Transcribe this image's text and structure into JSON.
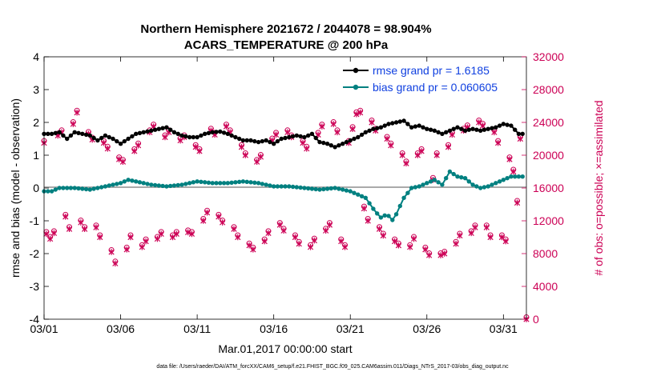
{
  "chart_data": {
    "type": "line",
    "title_line1": "Northern Hemisphere 2021672 / 2044078 = 98.904%",
    "title_line2": "ACARS_TEMPERATURE @ 200 hPa",
    "xlabel": "Mar.01,2017 00:00:00 start",
    "ylabel": "rmse and bias (model - observation)",
    "y2label": "# of obs: o=possible; ×=assimilated",
    "ylim": [
      -4,
      4
    ],
    "y2lim": [
      0,
      32000
    ],
    "xlim": [
      1,
      32.5
    ],
    "x_tick_values": [
      1,
      6,
      11,
      16,
      21,
      26,
      31
    ],
    "x_tick_labels": [
      "03/01",
      "03/06",
      "03/11",
      "03/16",
      "03/21",
      "03/26",
      "03/31"
    ],
    "y_tick_labels": [
      "4",
      "3",
      "2",
      "1",
      "0",
      "-1",
      "-2",
      "-3",
      "-4"
    ],
    "y2_tick_labels": [
      "32000",
      "28000",
      "24000",
      "20000",
      "16000",
      "12000",
      "8000",
      "4000",
      "0"
    ],
    "footnote": "data file: /Users/raeder/DAI/ATM_forcXX/CAM6_setup/f.e21.FHIST_BGC.f09_025.CAM6assim.011/Diags_NTrS_2017-03/obs_diag_output.nc",
    "series": [
      {
        "name": "rmse grand pr = 1.6185",
        "color": "#000000",
        "rmse_waypoints": [
          [
            1.0,
            1.65
          ],
          [
            1.5,
            1.65
          ],
          [
            2.0,
            1.7
          ],
          [
            2.5,
            1.5
          ],
          [
            3.0,
            1.7
          ],
          [
            3.5,
            1.65
          ],
          [
            4.0,
            1.6
          ],
          [
            4.5,
            1.45
          ],
          [
            5.0,
            1.6
          ],
          [
            5.5,
            1.5
          ],
          [
            6.0,
            1.35
          ],
          [
            6.5,
            1.5
          ],
          [
            7.0,
            1.65
          ],
          [
            7.5,
            1.7
          ],
          [
            8.0,
            1.75
          ],
          [
            8.5,
            1.8
          ],
          [
            9.0,
            1.85
          ],
          [
            9.5,
            1.7
          ],
          [
            10.0,
            1.6
          ],
          [
            10.5,
            1.55
          ],
          [
            11.0,
            1.55
          ],
          [
            11.5,
            1.65
          ],
          [
            12.0,
            1.7
          ],
          [
            12.5,
            1.72
          ],
          [
            13.0,
            1.65
          ],
          [
            13.5,
            1.55
          ],
          [
            14.0,
            1.45
          ],
          [
            14.5,
            1.45
          ],
          [
            15.0,
            1.4
          ],
          [
            15.5,
            1.45
          ],
          [
            16.0,
            1.35
          ],
          [
            16.5,
            1.5
          ],
          [
            17.0,
            1.55
          ],
          [
            17.5,
            1.6
          ],
          [
            18.0,
            1.55
          ],
          [
            18.5,
            1.65
          ],
          [
            19.0,
            1.4
          ],
          [
            19.5,
            1.35
          ],
          [
            20.0,
            1.25
          ],
          [
            20.5,
            1.35
          ],
          [
            21.0,
            1.45
          ],
          [
            21.5,
            1.55
          ],
          [
            22.0,
            1.7
          ],
          [
            22.5,
            1.8
          ],
          [
            23.0,
            1.85
          ],
          [
            23.5,
            1.95
          ],
          [
            24.0,
            2.0
          ],
          [
            24.5,
            2.05
          ],
          [
            25.0,
            1.85
          ],
          [
            25.5,
            1.9
          ],
          [
            26.0,
            1.8
          ],
          [
            26.5,
            1.75
          ],
          [
            27.0,
            1.65
          ],
          [
            27.5,
            1.75
          ],
          [
            28.0,
            1.85
          ],
          [
            28.5,
            1.75
          ],
          [
            29.0,
            1.8
          ],
          [
            29.5,
            1.75
          ],
          [
            30.0,
            1.8
          ],
          [
            30.5,
            1.85
          ],
          [
            31.0,
            1.95
          ],
          [
            31.5,
            1.9
          ],
          [
            32.0,
            1.65
          ]
        ]
      },
      {
        "name": "bias grand pr = 0.060605",
        "color": "#008080",
        "bias_waypoints": [
          [
            1.0,
            -0.1
          ],
          [
            1.5,
            -0.1
          ],
          [
            2.0,
            0.0
          ],
          [
            3.0,
            0.0
          ],
          [
            4.0,
            -0.05
          ],
          [
            5.0,
            0.05
          ],
          [
            6.0,
            0.15
          ],
          [
            6.5,
            0.25
          ],
          [
            7.0,
            0.2
          ],
          [
            8.0,
            0.1
          ],
          [
            9.0,
            0.05
          ],
          [
            10.0,
            0.1
          ],
          [
            11.0,
            0.2
          ],
          [
            12.0,
            0.15
          ],
          [
            13.0,
            0.15
          ],
          [
            14.0,
            0.2
          ],
          [
            15.0,
            0.15
          ],
          [
            16.0,
            0.05
          ],
          [
            17.0,
            0.05
          ],
          [
            18.0,
            0.0
          ],
          [
            19.0,
            -0.05
          ],
          [
            20.0,
            0.0
          ],
          [
            20.5,
            -0.05
          ],
          [
            21.0,
            -0.1
          ],
          [
            21.5,
            -0.2
          ],
          [
            22.0,
            -0.3
          ],
          [
            22.3,
            -0.5
          ],
          [
            22.6,
            -0.7
          ],
          [
            23.0,
            -0.9
          ],
          [
            23.4,
            -0.8
          ],
          [
            23.8,
            -1.0
          ],
          [
            24.2,
            -0.6
          ],
          [
            24.5,
            -0.3
          ],
          [
            25.0,
            0.0
          ],
          [
            25.5,
            0.05
          ],
          [
            26.0,
            0.15
          ],
          [
            26.5,
            0.25
          ],
          [
            27.0,
            0.1
          ],
          [
            27.5,
            0.5
          ],
          [
            28.0,
            0.35
          ],
          [
            28.5,
            0.3
          ],
          [
            29.0,
            0.1
          ],
          [
            29.5,
            0.0
          ],
          [
            30.0,
            0.05
          ],
          [
            30.5,
            0.15
          ],
          [
            31.0,
            0.25
          ],
          [
            31.5,
            0.35
          ],
          [
            32.0,
            0.35
          ]
        ]
      },
      {
        "name": "possible",
        "color": "#cc0055",
        "obs_waypoints": [
          [
            1.0,
            21500
          ],
          [
            1.15,
            10400
          ],
          [
            1.4,
            9800
          ],
          [
            1.65,
            10500
          ],
          [
            1.9,
            22400
          ],
          [
            2.15,
            22800
          ],
          [
            2.4,
            12500
          ],
          [
            2.65,
            11000
          ],
          [
            2.9,
            23800
          ],
          [
            3.15,
            25200
          ],
          [
            3.4,
            11800
          ],
          [
            3.65,
            11000
          ],
          [
            3.9,
            22600
          ],
          [
            4.15,
            21900
          ],
          [
            4.4,
            11200
          ],
          [
            4.65,
            10000
          ],
          [
            4.9,
            21500
          ],
          [
            5.15,
            20800
          ],
          [
            5.4,
            8200
          ],
          [
            5.65,
            6800
          ],
          [
            5.9,
            19500
          ],
          [
            6.15,
            19200
          ],
          [
            6.4,
            8500
          ],
          [
            6.65,
            10000
          ],
          [
            6.9,
            20500
          ],
          [
            7.15,
            21200
          ],
          [
            7.4,
            8800
          ],
          [
            7.65,
            9500
          ],
          [
            7.9,
            22800
          ],
          [
            8.15,
            23500
          ],
          [
            8.4,
            9800
          ],
          [
            8.65,
            10400
          ],
          [
            8.9,
            22200
          ],
          [
            9.15,
            22800
          ],
          [
            9.4,
            10000
          ],
          [
            9.65,
            10400
          ],
          [
            9.9,
            21800
          ],
          [
            10.15,
            22200
          ],
          [
            10.4,
            10600
          ],
          [
            10.65,
            10400
          ],
          [
            10.9,
            21000
          ],
          [
            11.15,
            20500
          ],
          [
            11.4,
            12000
          ],
          [
            11.65,
            13000
          ],
          [
            11.9,
            23000
          ],
          [
            12.15,
            22500
          ],
          [
            12.4,
            12500
          ],
          [
            12.65,
            11800
          ],
          [
            12.9,
            23500
          ],
          [
            13.15,
            22800
          ],
          [
            13.4,
            11000
          ],
          [
            13.65,
            10000
          ],
          [
            13.9,
            21000
          ],
          [
            14.15,
            20000
          ],
          [
            14.4,
            9000
          ],
          [
            14.65,
            8500
          ],
          [
            14.9,
            19200
          ],
          [
            15.15,
            19800
          ],
          [
            15.4,
            9500
          ],
          [
            15.65,
            10500
          ],
          [
            15.9,
            21800
          ],
          [
            16.15,
            22500
          ],
          [
            16.4,
            11500
          ],
          [
            16.65,
            10800
          ],
          [
            16.9,
            22800
          ],
          [
            17.15,
            22200
          ],
          [
            17.4,
            10000
          ],
          [
            17.65,
            9200
          ],
          [
            17.9,
            21500
          ],
          [
            18.15,
            20800
          ],
          [
            18.4,
            8800
          ],
          [
            18.65,
            9600
          ],
          [
            18.9,
            22500
          ],
          [
            19.15,
            23500
          ],
          [
            19.4,
            10800
          ],
          [
            19.65,
            11500
          ],
          [
            19.9,
            23800
          ],
          [
            20.15,
            22800
          ],
          [
            20.4,
            9500
          ],
          [
            20.65,
            8800
          ],
          [
            20.9,
            21500
          ],
          [
            21.15,
            23200
          ],
          [
            21.4,
            25000
          ],
          [
            21.65,
            25200
          ],
          [
            21.9,
            13500
          ],
          [
            22.15,
            12000
          ],
          [
            22.4,
            24000
          ],
          [
            22.65,
            23000
          ],
          [
            22.9,
            11000
          ],
          [
            23.15,
            10200
          ],
          [
            23.4,
            22000
          ],
          [
            23.65,
            21200
          ],
          [
            23.9,
            9500
          ],
          [
            24.15,
            9000
          ],
          [
            24.4,
            20000
          ],
          [
            24.65,
            19000
          ],
          [
            24.9,
            8800
          ],
          [
            25.15,
            9800
          ],
          [
            25.4,
            20000
          ],
          [
            25.65,
            20500
          ],
          [
            25.9,
            8500
          ],
          [
            26.15,
            7800
          ],
          [
            26.4,
            17000
          ],
          [
            26.65,
            20000
          ],
          [
            26.9,
            7800
          ],
          [
            27.15,
            8000
          ],
          [
            27.4,
            21000
          ],
          [
            27.65,
            22500
          ],
          [
            27.9,
            9200
          ],
          [
            28.15,
            10200
          ],
          [
            28.4,
            23000
          ],
          [
            28.65,
            23400
          ],
          [
            28.9,
            10500
          ],
          [
            29.15,
            11200
          ],
          [
            29.4,
            24000
          ],
          [
            29.65,
            23600
          ],
          [
            29.9,
            11200
          ],
          [
            30.15,
            10000
          ],
          [
            30.4,
            22800
          ],
          [
            30.65,
            21500
          ],
          [
            30.9,
            10000
          ],
          [
            31.15,
            9500
          ],
          [
            31.4,
            19500
          ],
          [
            31.65,
            18000
          ],
          [
            31.9,
            14200
          ],
          [
            32.1,
            22000
          ],
          [
            32.5,
            0
          ]
        ]
      }
    ]
  }
}
